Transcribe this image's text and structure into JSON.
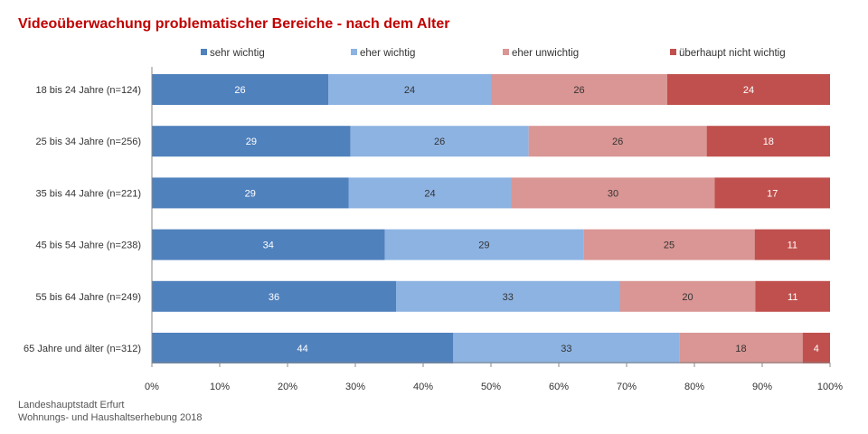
{
  "title": "Videoüberwachung problematischer Bereiche - nach dem Alter",
  "source": {
    "line1": "Landeshauptstadt Erfurt",
    "line2": "Wohnungs- und Haushaltserhebung 2018"
  },
  "chart_data": {
    "type": "bar",
    "orientation": "horizontal",
    "stacked": true,
    "categories": [
      "18 bis 24 Jahre (n=124)",
      "25 bis 34 Jahre (n=256)",
      "35 bis 44 Jahre (n=221)",
      "45 bis 54 Jahre (n=238)",
      "55 bis 64 Jahre (n=249)",
      "65 Jahre und älter (n=312)"
    ],
    "series": [
      {
        "name": "sehr wichtig",
        "color": "#4f81bd",
        "label_color": "#ffffff",
        "values": [
          26,
          29,
          29,
          34,
          36,
          44
        ]
      },
      {
        "name": "eher wichtig",
        "color": "#8db3e2",
        "label_color": "#333333",
        "values": [
          24,
          26,
          24,
          29,
          33,
          33
        ]
      },
      {
        "name": "eher unwichtig",
        "color": "#d99694",
        "label_color": "#333333",
        "values": [
          26,
          26,
          30,
          25,
          20,
          18
        ]
      },
      {
        "name": "überhaupt nicht wichtig",
        "color": "#c0504d",
        "label_color": "#ffffff",
        "values": [
          24,
          18,
          17,
          11,
          11,
          4
        ]
      }
    ],
    "xlim": [
      0,
      100
    ],
    "x_ticks": [
      "0%",
      "10%",
      "20%",
      "30%",
      "40%",
      "50%",
      "60%",
      "70%",
      "80%",
      "90%",
      "100%"
    ],
    "legend_position": "top",
    "grid": false
  }
}
